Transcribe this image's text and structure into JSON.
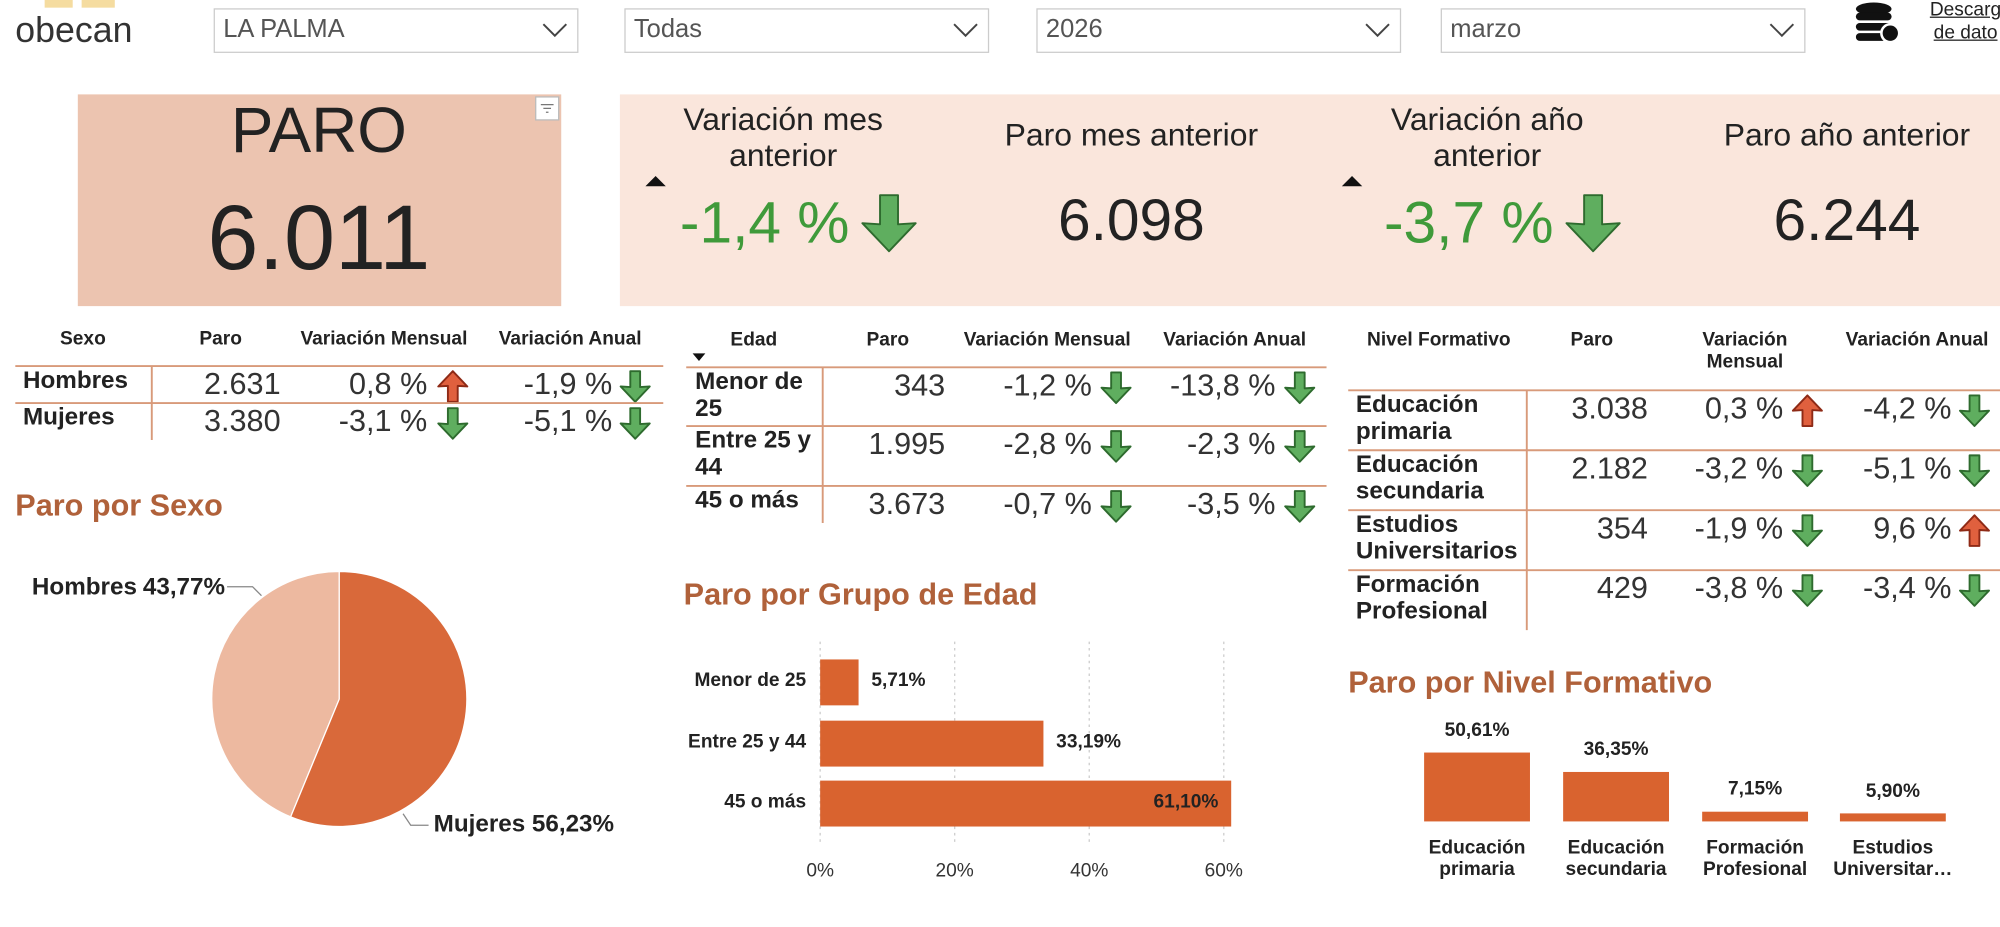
{
  "header": {
    "logo": "obecan",
    "filters": [
      "LA PALMA",
      "Todas",
      "2026",
      "marzo"
    ],
    "download": [
      "Descarg",
      "de dato"
    ]
  },
  "kpi": {
    "title": "PARO",
    "value": "6.011",
    "cards": [
      {
        "label": "Variación mes anterior",
        "value": "-1,4 %"
      },
      {
        "label": "Paro mes anterior",
        "value": "6.098"
      },
      {
        "label": "Variación año anterior",
        "value": "-3,7 %"
      },
      {
        "label": "Paro año anterior",
        "value": "6.244"
      }
    ]
  },
  "tables": [
    {
      "headers": [
        "Sexo",
        "Paro",
        "Variación Mensual",
        "Variación Anual"
      ],
      "rows": [
        [
          "Hombres",
          "2.631",
          "0,8 %",
          "-1,9 %"
        ],
        [
          "Mujeres",
          "3.380",
          "-3,1 %",
          "-5,1 %"
        ]
      ]
    },
    {
      "headers": [
        "Edad",
        "Paro",
        "Variación Mensual",
        "Variación Anual"
      ],
      "rows": [
        [
          "Menor de 25",
          "343",
          "-1,2 %",
          "-13,8 %"
        ],
        [
          "Entre 25 y 44",
          "1.995",
          "-2,8 %",
          "-2,3 %"
        ],
        [
          "45 o más",
          "3.673",
          "-0,7 %",
          "-3,5 %"
        ]
      ]
    },
    {
      "headers": [
        "Nivel Formativo",
        "Paro",
        "Variación Mensual",
        "Variación Anual"
      ],
      "rows": [
        [
          "Educación primaria",
          "3.038",
          "0,3 %",
          "-4,2 %"
        ],
        [
          "Educación secundaria",
          "2.182",
          "-3,2 %",
          "-5,1 %"
        ],
        [
          "Estudios Universitarios",
          "354",
          "-1,9 %",
          "9,6 %"
        ],
        [
          "Formación Profesional",
          "429",
          "-3,8 %",
          "-3,4 %"
        ]
      ]
    }
  ],
  "chart_data": [
    {
      "type": "pie",
      "title": "Paro por Sexo",
      "categories": [
        "Hombres",
        "Mujeres"
      ],
      "values": [
        43.77,
        56.23
      ],
      "value_labels": [
        "43,77%",
        "56,23%"
      ],
      "colors": [
        "#edb9a0",
        "#d9693a"
      ]
    },
    {
      "type": "bar",
      "orientation": "horizontal",
      "title": "Paro por Grupo de Edad",
      "categories": [
        "Menor de 25",
        "Entre 25 y 44",
        "45 o más"
      ],
      "values": [
        5.71,
        33.19,
        61.1
      ],
      "value_labels": [
        "5,71%",
        "33,19%",
        "61,10%"
      ],
      "color": "#d9632f",
      "xlim": [
        0,
        62
      ],
      "xticks": [
        {
          "value": 0,
          "label": "0%"
        },
        {
          "value": 20,
          "label": "20%"
        },
        {
          "value": 40,
          "label": "40%"
        },
        {
          "value": 60,
          "label": "60%"
        }
      ],
      "grid": true
    },
    {
      "type": "bar",
      "orientation": "vertical",
      "title": "Paro por Nivel Formativo",
      "categories": [
        "Educación primaria",
        "Educación secundaria",
        "Formación Profesional",
        "Estudios Universitar…"
      ],
      "values": [
        50.61,
        36.35,
        7.15,
        5.9
      ],
      "value_labels": [
        "50,61%",
        "36,35%",
        "7,15%",
        "5,90%"
      ],
      "color": "#d9632f"
    }
  ]
}
